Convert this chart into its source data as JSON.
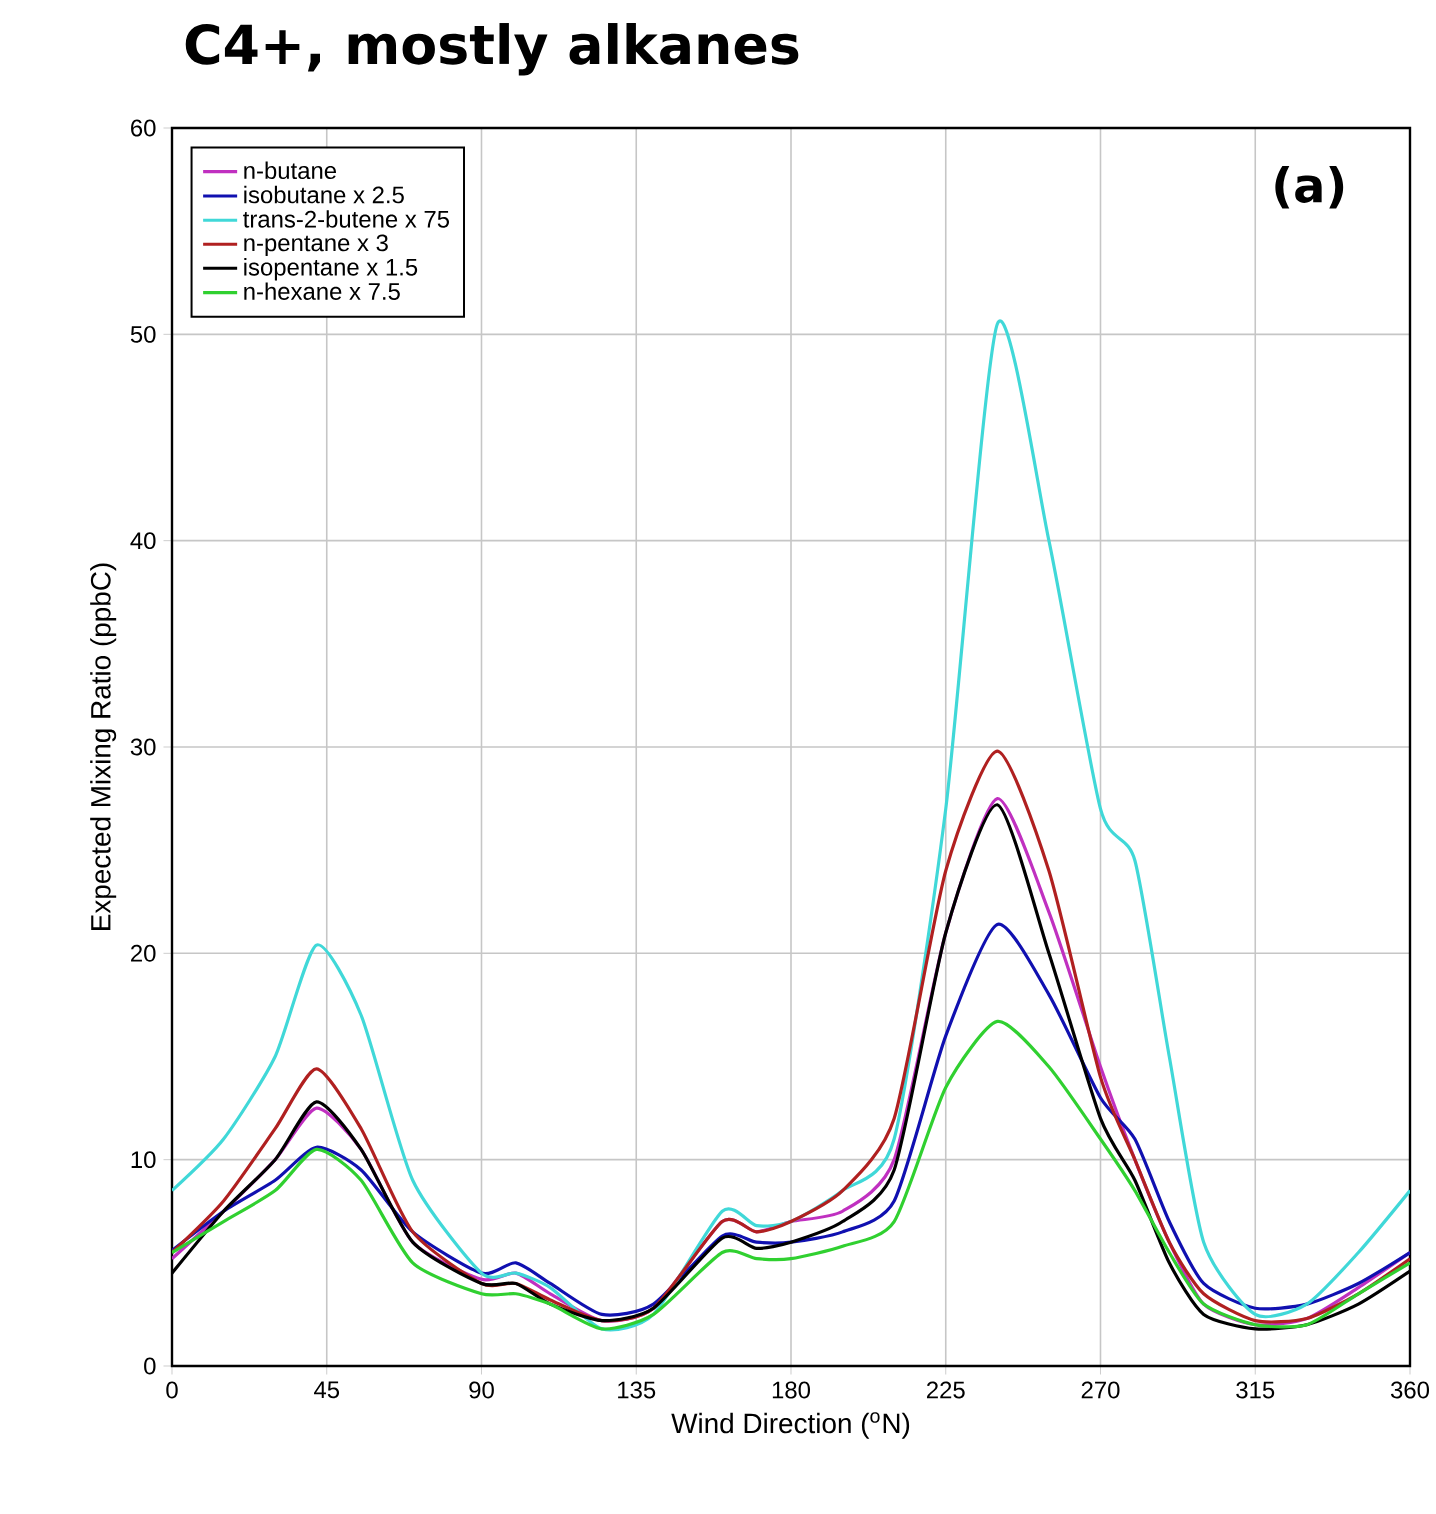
{
  "chart_data": {
    "type": "line",
    "title": "C4+, mostly alkanes",
    "xlabel": "Wind Direction ($^{o}$N)",
    "ylabel": "Expected Mixing Ratio (ppbC)",
    "annotations": [
      "(a)"
    ],
    "x": [
      0,
      15,
      30,
      42,
      55,
      70,
      90,
      100,
      110,
      125,
      140,
      160,
      170,
      180,
      195,
      210,
      225,
      240,
      255,
      270,
      280,
      290,
      300,
      315,
      330,
      345,
      360
    ],
    "series": [
      {
        "name": "n-butane",
        "color": "#c030c0",
        "values": [
          5.2,
          7.5,
          10,
          12.5,
          10.5,
          6,
          4.2,
          4.5,
          3.5,
          2.2,
          2.8,
          7,
          6.5,
          7,
          7.5,
          10,
          21,
          27.5,
          22,
          14.5,
          10,
          6,
          3,
          2,
          2.3,
          3.8,
          5.5
        ]
      },
      {
        "name": "isobutane x 2.5",
        "color": "#1010b0",
        "values": [
          5.6,
          7.5,
          9,
          10.6,
          9.5,
          6.5,
          4.5,
          5,
          4,
          2.5,
          3,
          6.3,
          6,
          6,
          6.5,
          8,
          16,
          21.4,
          18,
          13,
          11,
          7,
          4,
          2.8,
          3,
          4,
          5.5
        ]
      },
      {
        "name": "trans-2-butene x 75",
        "color": "#40d8d8",
        "values": [
          8.5,
          11,
          15,
          20.4,
          17,
          9,
          4.5,
          4.5,
          3.8,
          1.8,
          2.5,
          7.5,
          6.8,
          7,
          8.5,
          11,
          27,
          50.5,
          40,
          27,
          24.5,
          15,
          6,
          2.5,
          3,
          5.5,
          8.5
        ]
      },
      {
        "name": "n-pentane x 3",
        "color": "#b02020",
        "values": [
          5.5,
          8,
          11.5,
          14.4,
          11.5,
          6.5,
          4,
          4,
          3.2,
          2.2,
          2.8,
          7,
          6.5,
          7,
          8.5,
          12,
          24,
          29.8,
          24,
          14,
          10,
          6,
          3.5,
          2.2,
          2.3,
          3.5,
          5.2
        ]
      },
      {
        "name": "isopentane x 1.5",
        "color": "#000000",
        "values": [
          4.5,
          7.5,
          10,
          12.8,
          10.5,
          6,
          4,
          4,
          3,
          2.2,
          2.8,
          6.2,
          5.7,
          6,
          7,
          9.5,
          21,
          27.2,
          20,
          12,
          9,
          5,
          2.5,
          1.8,
          2,
          3,
          4.6
        ]
      },
      {
        "name": "n-hexane x 7.5",
        "color": "#30d030",
        "values": [
          5.5,
          7,
          8.5,
          10.5,
          9,
          5,
          3.5,
          3.5,
          3,
          1.8,
          2.5,
          5.5,
          5.2,
          5.2,
          5.8,
          7,
          13.5,
          16.7,
          14.5,
          11,
          8.5,
          5.5,
          3,
          2,
          2,
          3.5,
          5
        ]
      }
    ],
    "xlim": [
      0,
      360
    ],
    "xticks": [
      0,
      45,
      90,
      135,
      180,
      225,
      270,
      315,
      360
    ],
    "ylim": [
      0,
      60
    ],
    "yticks": [
      0,
      10,
      20,
      30,
      40,
      50,
      60
    ],
    "grid": true,
    "legend": "top left",
    "marker": "none",
    "line_style": "solid"
  }
}
